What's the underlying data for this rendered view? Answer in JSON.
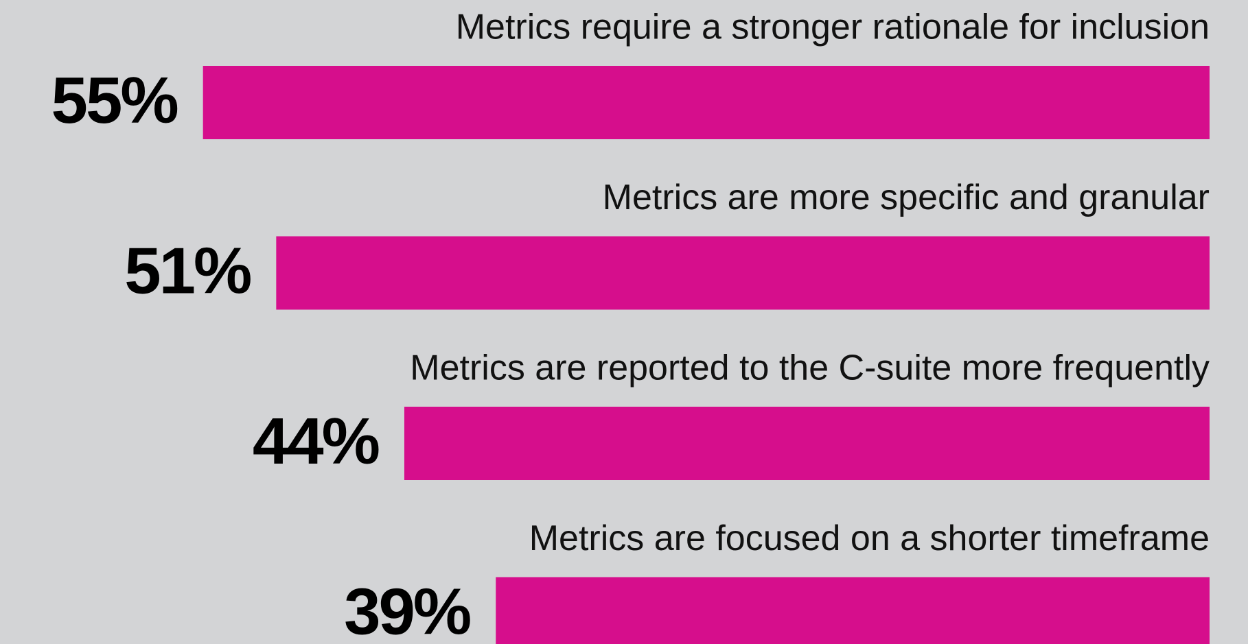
{
  "chart_data": {
    "type": "bar",
    "orientation": "horizontal",
    "categories": [
      "Metrics require a stronger rationale for inclusion",
      "Metrics are more specific and granular",
      "Metrics are reported to the C-suite more frequently",
      "Metrics are focused on a shorter timeframe"
    ],
    "values": [
      55,
      51,
      44,
      39
    ],
    "value_labels": [
      "55%",
      "51%",
      "44%",
      "39%"
    ],
    "color": "#d60e8c"
  }
}
